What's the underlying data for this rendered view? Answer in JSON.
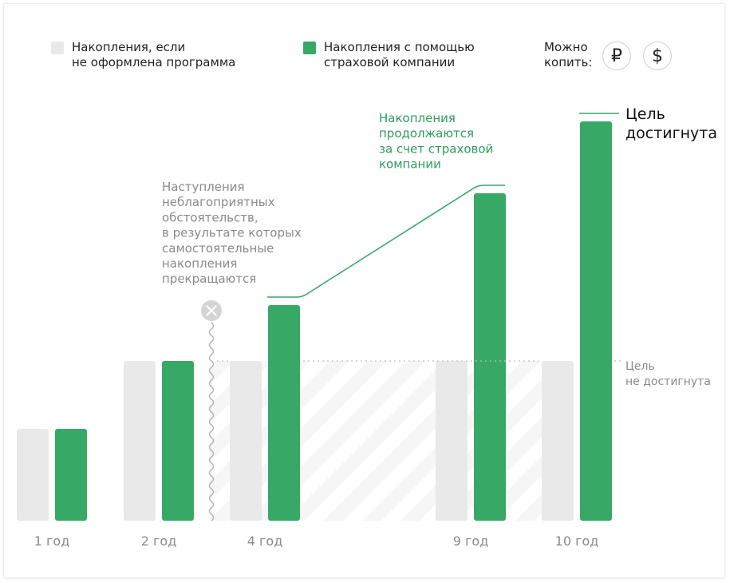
{
  "legend": {
    "gray_label": "Накопления, если\nне оформлена программа",
    "green_label": "Накопления с помощью\nстраховой компании",
    "save_label": "Можно\nкопить:",
    "rub_symbol": "₽",
    "usd_symbol": "$"
  },
  "colors": {
    "green": "#38a866",
    "gray": "#e9e9e9",
    "gray_text": "#8a8a8a",
    "green_text": "#2e9c5c",
    "dark_text": "#111111"
  },
  "annotations": {
    "adverse": "Наступления\nнеблагоприятных\nобстоятельств,\nв результате которых\nсамостоятельные\nнакопления\nпрекращаются",
    "continue": "Накопления\nпродолжаются\nза счет страховой\nкомпании",
    "goal_reached": "Цель\nдостигнута",
    "goal_not_reached": "Цель\nне достигнута"
  },
  "chart_data": {
    "type": "bar",
    "categories": [
      "1 год",
      "2 год",
      "4 год",
      "9 год",
      "10 год"
    ],
    "series": [
      {
        "name": "Накопления, если не оформлена программа",
        "values": [
          115,
          200,
          200,
          200,
          200
        ]
      },
      {
        "name": "Накопления с помощью страховой компании",
        "values": [
          115,
          200,
          270,
          410,
          500
        ]
      }
    ],
    "ylim": [
      0,
      510
    ]
  }
}
